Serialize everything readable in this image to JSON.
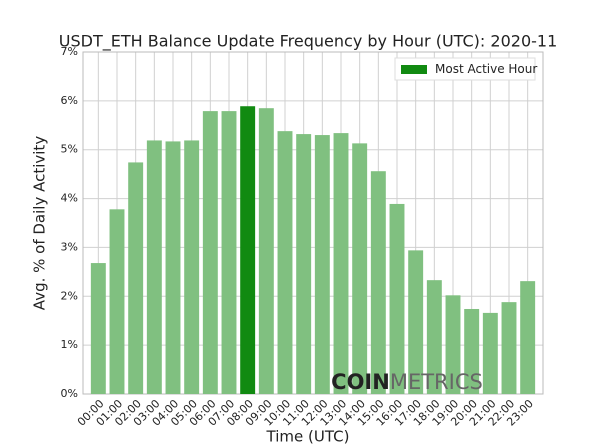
{
  "chart_data": {
    "type": "bar",
    "title": "USDT_ETH Balance Update Frequency by Hour (UTC): 2020-11",
    "x_label": "Time (UTC)",
    "y_label": "Avg. % of Daily Activity",
    "categories": [
      "00:00",
      "01:00",
      "02:00",
      "03:00",
      "04:00",
      "05:00",
      "06:00",
      "07:00",
      "08:00",
      "09:00",
      "10:00",
      "11:00",
      "12:00",
      "13:00",
      "14:00",
      "15:00",
      "16:00",
      "17:00",
      "18:00",
      "19:00",
      "20:00",
      "21:00",
      "22:00",
      "23:00"
    ],
    "values": [
      2.68,
      3.78,
      4.74,
      5.19,
      5.17,
      5.19,
      5.79,
      5.79,
      5.89,
      5.85,
      5.38,
      5.32,
      5.3,
      5.34,
      5.13,
      4.56,
      3.89,
      2.94,
      2.33,
      2.02,
      1.74,
      1.66,
      1.88,
      2.31
    ],
    "colors": [
      "#80c080",
      "#80c080",
      "#80c080",
      "#80c080",
      "#80c080",
      "#80c080",
      "#80c080",
      "#80c080",
      "#118a11",
      "#80c080",
      "#80c080",
      "#80c080",
      "#80c080",
      "#80c080",
      "#80c080",
      "#80c080",
      "#80c080",
      "#80c080",
      "#80c080",
      "#80c080",
      "#80c080",
      "#80c080",
      "#80c080",
      "#80c080"
    ],
    "ylim": [
      0,
      7
    ],
    "yticks": [
      {
        "value": 0,
        "label": "0%"
      },
      {
        "value": 1,
        "label": "1%"
      },
      {
        "value": 2,
        "label": "2%"
      },
      {
        "value": 3,
        "label": "3%"
      },
      {
        "value": 4,
        "label": "4%"
      },
      {
        "value": 5,
        "label": "5%"
      },
      {
        "value": 6,
        "label": "6%"
      },
      {
        "value": 7,
        "label": "7%"
      }
    ],
    "grid": true,
    "legend": {
      "label": "Most Active Hour",
      "color": "#118a11",
      "position": "upper right"
    },
    "watermark": {
      "bold": "COIN",
      "light": "METRICS"
    }
  }
}
